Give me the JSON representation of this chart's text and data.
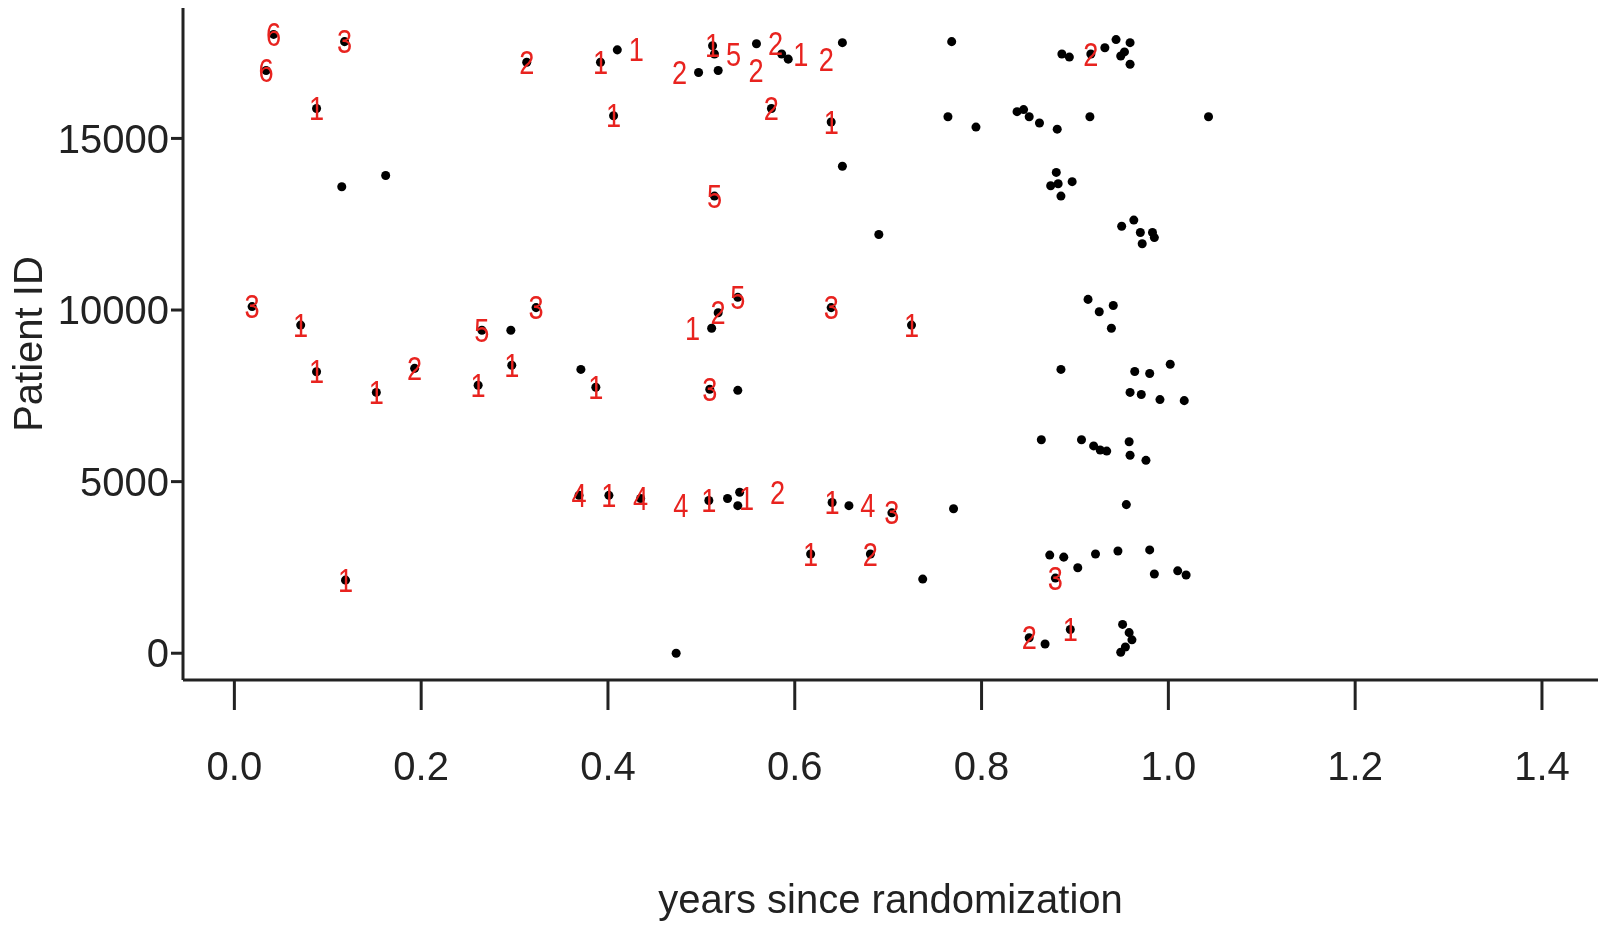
{
  "chart_data": {
    "type": "scatter",
    "xlabel": "years since randomization",
    "ylabel": "Patient ID",
    "xlim": [
      -0.055,
      1.46
    ],
    "ylim": [
      -780,
      18800
    ],
    "xticks": [
      {
        "value": 0,
        "label": "0.0"
      },
      0.2,
      0.4,
      0.6,
      0.8,
      {
        "value": 1,
        "label": "1.0"
      },
      1.2,
      1.4
    ],
    "yticks": [
      0,
      5000,
      10000,
      15000
    ],
    "series": [
      {
        "color": "#000000",
        "marker": "circle",
        "x": [
          0.162,
          0.115,
          0.296,
          0.371,
          0.539,
          0.473,
          0.651,
          0.768,
          0.764,
          0.794,
          0.651,
          0.69,
          0.737,
          0.77,
          0.864,
          0.885,
          0.914,
          0.926,
          0.941,
          0.939,
          0.955,
          0.886,
          0.894,
          0.932,
          0.944,
          0.953,
          0.959,
          0.959,
          0.949,
          0.838,
          0.845,
          0.851,
          0.862,
          0.881,
          0.916,
          1.043,
          0.88,
          0.882,
          0.897,
          0.885,
          0.874,
          0.95,
          0.963,
          0.97,
          0.983,
          0.972,
          0.985,
          0.959,
          0.964,
          0.98,
          1.002,
          0.991,
          1.017,
          0.971,
          0.907,
          0.92,
          0.927,
          0.934,
          0.958,
          0.959,
          0.976,
          0.873,
          0.888,
          0.903,
          0.922,
          0.946,
          0.98,
          0.985,
          1.01,
          1.019,
          0.868,
          0.951,
          0.958,
          0.954,
          0.949,
          0.961,
          0.042,
          0.034,
          0.118,
          0.088,
          0.313,
          0.392,
          0.41,
          0.406,
          0.512,
          0.514,
          0.497,
          0.518,
          0.559,
          0.586,
          0.593,
          0.575,
          0.639,
          0.514,
          0.917,
          0.019,
          0.071,
          0.265,
          0.323,
          0.088,
          0.152,
          0.193,
          0.261,
          0.297,
          0.387,
          0.509,
          0.518,
          0.511,
          0.539,
          0.639,
          0.725,
          0.369,
          0.401,
          0.435,
          0.508,
          0.528,
          0.541,
          0.539,
          0.64,
          0.658,
          0.704,
          0.617,
          0.681,
          0.119,
          0.879,
          0.851,
          0.895
        ],
        "values": [
          13920,
          13590,
          9410,
          8270,
          7660,
          0,
          17790,
          17820,
          15630,
          15330,
          14190,
          12200,
          2160,
          4210,
          6220,
          8270,
          10310,
          9950,
          10130,
          9470,
          4330,
          17460,
          17370,
          17640,
          17880,
          17520,
          17790,
          17160,
          17400,
          15780,
          15840,
          15630,
          15450,
          15270,
          15630,
          15630,
          14010,
          13680,
          13740,
          13320,
          13620,
          12440,
          12620,
          12260,
          12260,
          11930,
          12110,
          7600,
          8210,
          8150,
          8420,
          7390,
          7360,
          7540,
          6220,
          6040,
          5920,
          5890,
          6160,
          5770,
          5620,
          2860,
          2800,
          2490,
          2890,
          2980,
          3010,
          2310,
          2400,
          2280,
          270,
          840,
          600,
          180,
          30,
          390,
          18030,
          16980,
          17820,
          15870,
          17220,
          17220,
          17580,
          15660,
          17700,
          17460,
          16920,
          16980,
          17760,
          17460,
          17310,
          15870,
          15480,
          13320,
          17460,
          10100,
          9560,
          9410,
          10070,
          8200,
          7600,
          8300,
          7810,
          8390,
          7750,
          7690,
          9920,
          9470,
          10370,
          10070,
          9560,
          4600,
          4600,
          4510,
          4450,
          4510,
          4690,
          4300,
          4390,
          4300,
          4090,
          2890,
          2890,
          2130,
          2190,
          450,
          690
        ]
      }
    ],
    "annotations": [
      {
        "text": "6",
        "x": 0.042,
        "y": 18030
      },
      {
        "text": "6",
        "x": 0.034,
        "y": 16980
      },
      {
        "text": "3",
        "x": 0.118,
        "y": 17820
      },
      {
        "text": "1",
        "x": 0.088,
        "y": 15870
      },
      {
        "text": "2",
        "x": 0.313,
        "y": 17220
      },
      {
        "text": "1",
        "x": 0.392,
        "y": 17220
      },
      {
        "text": "1",
        "x": 0.41,
        "y": 17580
      },
      {
        "text": "1",
        "x": 0.406,
        "y": 15660
      },
      {
        "text": "1",
        "x": 0.512,
        "y": 17700
      },
      {
        "text": "5",
        "x": 0.514,
        "y": 17460
      },
      {
        "text": "2",
        "x": 0.497,
        "y": 16920
      },
      {
        "text": "2",
        "x": 0.518,
        "y": 16980
      },
      {
        "text": "2",
        "x": 0.559,
        "y": 17760
      },
      {
        "text": "1",
        "x": 0.586,
        "y": 17460
      },
      {
        "text": "2",
        "x": 0.593,
        "y": 17310
      },
      {
        "text": "2",
        "x": 0.575,
        "y": 15870
      },
      {
        "text": "1",
        "x": 0.639,
        "y": 15480
      },
      {
        "text": "5",
        "x": 0.514,
        "y": 13320
      },
      {
        "text": "2",
        "x": 0.917,
        "y": 17460
      },
      {
        "text": "3",
        "x": 0.019,
        "y": 10100
      },
      {
        "text": "1",
        "x": 0.071,
        "y": 9560
      },
      {
        "text": "5",
        "x": 0.265,
        "y": 9410
      },
      {
        "text": "3",
        "x": 0.323,
        "y": 10070
      },
      {
        "text": "1",
        "x": 0.088,
        "y": 8200
      },
      {
        "text": "1",
        "x": 0.152,
        "y": 7600
      },
      {
        "text": "2",
        "x": 0.193,
        "y": 8300
      },
      {
        "text": "1",
        "x": 0.261,
        "y": 7810
      },
      {
        "text": "1",
        "x": 0.297,
        "y": 8390
      },
      {
        "text": "1",
        "x": 0.387,
        "y": 7750
      },
      {
        "text": "3",
        "x": 0.509,
        "y": 7690
      },
      {
        "text": "2",
        "x": 0.518,
        "y": 9920
      },
      {
        "text": "1",
        "x": 0.511,
        "y": 9470
      },
      {
        "text": "5",
        "x": 0.539,
        "y": 10370
      },
      {
        "text": "3",
        "x": 0.639,
        "y": 10070
      },
      {
        "text": "1",
        "x": 0.725,
        "y": 9560
      },
      {
        "text": "4",
        "x": 0.369,
        "y": 4600
      },
      {
        "text": "1",
        "x": 0.401,
        "y": 4600
      },
      {
        "text": "4",
        "x": 0.435,
        "y": 4510
      },
      {
        "text": "1",
        "x": 0.508,
        "y": 4450
      },
      {
        "text": "1",
        "x": 0.528,
        "y": 4510
      },
      {
        "text": "2",
        "x": 0.541,
        "y": 4690
      },
      {
        "text": "4",
        "x": 0.539,
        "y": 4300
      },
      {
        "text": "1",
        "x": 0.64,
        "y": 4390
      },
      {
        "text": "4",
        "x": 0.658,
        "y": 4300
      },
      {
        "text": "3",
        "x": 0.704,
        "y": 4090
      },
      {
        "text": "1",
        "x": 0.617,
        "y": 2890
      },
      {
        "text": "2",
        "x": 0.681,
        "y": 2890
      },
      {
        "text": "1",
        "x": 0.119,
        "y": 2130
      },
      {
        "text": "3",
        "x": 0.879,
        "y": 2190
      },
      {
        "text": "2",
        "x": 0.851,
        "y": 450
      },
      {
        "text": "1",
        "x": 0.895,
        "y": 690
      }
    ]
  }
}
